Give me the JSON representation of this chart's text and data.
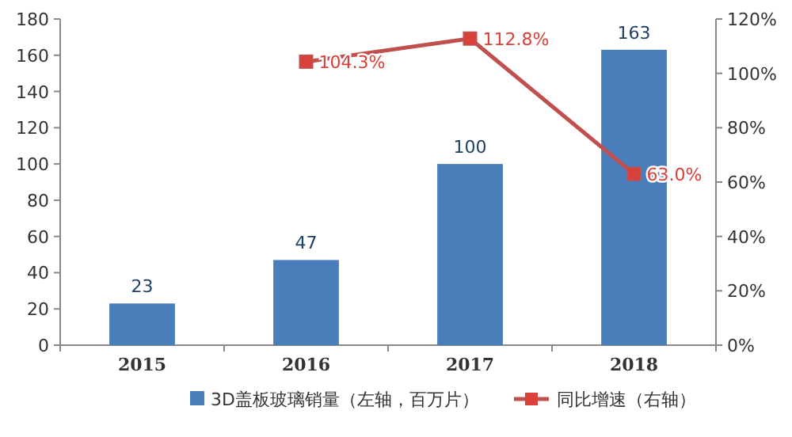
{
  "chart_data": {
    "type": "bar",
    "categories": [
      "2015",
      "2016",
      "2017",
      "2018"
    ],
    "series": [
      {
        "name": "3D盖板玻璃销量（左轴，百万片）",
        "color": "#4a7ebb",
        "values": [
          23,
          47,
          100,
          163
        ],
        "value_labels": [
          "23",
          "47",
          "100",
          "163"
        ]
      },
      {
        "name": "同比增速（右轴）",
        "type": "line",
        "axis": "y2",
        "color": "#c0504d",
        "marker": "square",
        "values": [
          null,
          104.3,
          112.8,
          63.0
        ],
        "value_labels": [
          null,
          "104.3%",
          "112.8%",
          "63.0%"
        ]
      }
    ],
    "ylim": [
      0,
      180
    ],
    "yticks": [
      0,
      20,
      40,
      60,
      80,
      100,
      120,
      140,
      160,
      180
    ],
    "y2lim": [
      0,
      120
    ],
    "y2ticks": [
      {
        "value": 0,
        "label": "0%"
      },
      {
        "value": 20,
        "label": "20%"
      },
      {
        "value": 40,
        "label": "40%"
      },
      {
        "value": 60,
        "label": "60%"
      },
      {
        "value": 80,
        "label": "80%"
      },
      {
        "value": 100,
        "label": "100%"
      },
      {
        "value": 120,
        "label": "120%"
      }
    ],
    "legend": "bottom",
    "grid": false
  }
}
